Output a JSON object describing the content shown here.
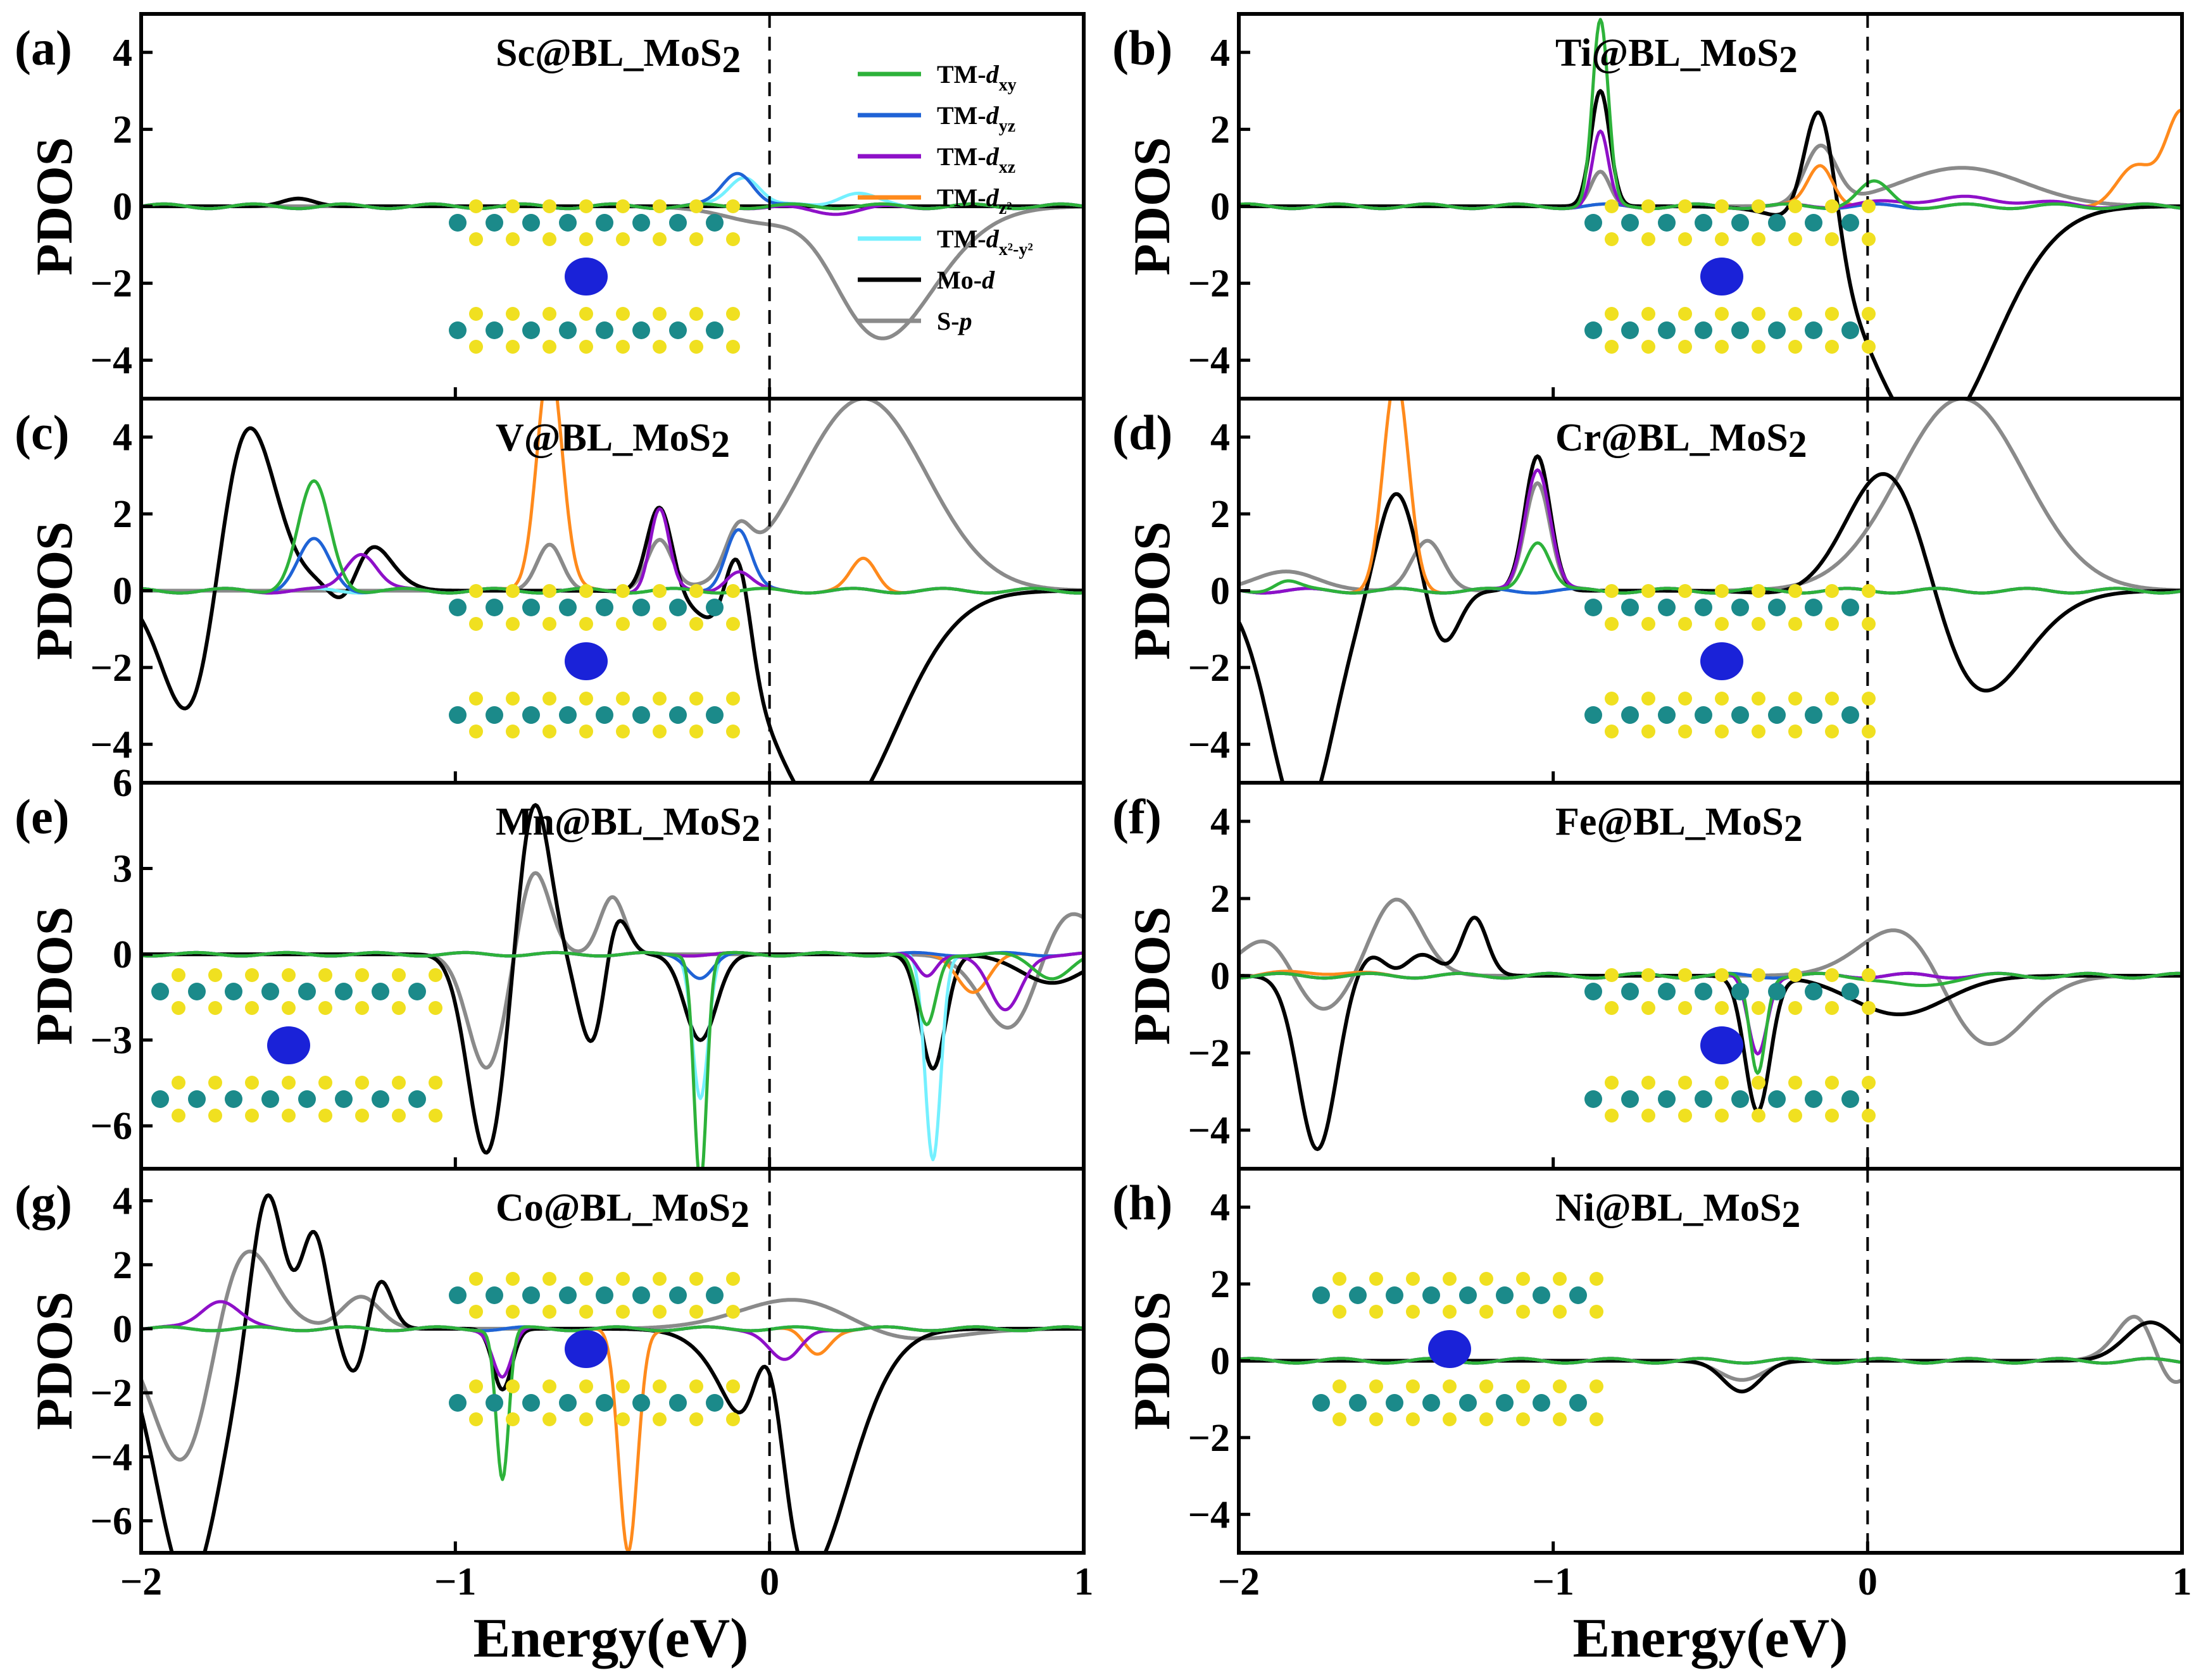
{
  "figure": {
    "xlabel": "Energy(eV)",
    "ylabel": "PDOS"
  },
  "legend": [
    {
      "key": "dxy",
      "prefix": "TM-",
      "italic": "d",
      "sub": "xy",
      "color": "#2db23a"
    },
    {
      "key": "dyz",
      "prefix": "TM-",
      "italic": "d",
      "sub": "yz",
      "color": "#1f63d6"
    },
    {
      "key": "dxz",
      "prefix": "TM-",
      "italic": "d",
      "sub": "xz",
      "color": "#8e10c8"
    },
    {
      "key": "dz2",
      "prefix": "TM-",
      "italic": "d",
      "sub": "z²",
      "color": "#ff8a1c"
    },
    {
      "key": "dx2y2",
      "prefix": "TM-",
      "italic": "d",
      "sub": "x²-y²",
      "color": "#74f0ff"
    },
    {
      "key": "mod",
      "prefix": "Mo-",
      "italic": "d",
      "sub": "",
      "color": "#000000"
    },
    {
      "key": "sp",
      "prefix": "S-",
      "italic": "p",
      "sub": "",
      "color": "#8a8a8a"
    }
  ],
  "chart_data": [
    {
      "type": "line",
      "panel": "(a)",
      "title": "Sc@BL_MoS",
      "title_sub": "2",
      "xlabel": "",
      "ylabel": "PDOS",
      "xlim": [
        -2,
        1
      ],
      "ylim": [
        -5,
        5
      ],
      "xticks": [
        -2,
        -1,
        0,
        1
      ],
      "yticks": [
        -4,
        -2,
        0,
        2,
        4
      ],
      "fermi": 0,
      "peaks": {
        "mod": [
          [
            -1.5,
            1.6,
            0.05
          ],
          [
            -1.5,
            -1.4,
            0.05
          ],
          [
            -2.0,
            6,
            0.12
          ],
          [
            -2.0,
            -6,
            0.12
          ],
          [
            0.3,
            7,
            0.25
          ],
          [
            0.3,
            -7,
            0.25
          ]
        ],
        "sp": [
          [
            -1.6,
            0.5,
            0.06
          ],
          [
            -1.6,
            -0.5,
            0.06
          ],
          [
            -1.9,
            3.5,
            0.1
          ],
          [
            -1.9,
            -3.5,
            0.1
          ],
          [
            0.15,
            1.8,
            0.12
          ],
          [
            0.3,
            -4,
            0.2
          ]
        ],
        "dx2y2": [
          [
            -0.08,
            0.8,
            0.05
          ],
          [
            0.27,
            0.35,
            0.06
          ]
        ],
        "dyz": [
          [
            -0.1,
            0.9,
            0.05
          ]
        ],
        "dxz": [
          [
            0.2,
            -0.15,
            0.1
          ]
        ]
      }
    },
    {
      "type": "line",
      "panel": "(b)",
      "title": "Ti@BL_MoS",
      "title_sub": "2",
      "xlabel": "",
      "ylabel": "PDOS",
      "xlim": [
        -2,
        1
      ],
      "ylim": [
        -5,
        5
      ],
      "xticks": [
        -2,
        -1,
        0,
        1
      ],
      "yticks": [
        -4,
        -2,
        0,
        2,
        4
      ],
      "fermi": 0,
      "peaks": {
        "mod": [
          [
            -0.85,
            3.0,
            0.03
          ],
          [
            -0.15,
            3.7,
            0.05
          ],
          [
            -1.55,
            1.6,
            0.05
          ],
          [
            -1.55,
            -1.6,
            0.05
          ],
          [
            -1.85,
            6,
            0.1
          ],
          [
            -1.85,
            -6,
            0.1
          ],
          [
            0.2,
            -6,
            0.2
          ]
        ],
        "sp": [
          [
            -0.85,
            0.9,
            0.03
          ],
          [
            -0.15,
            1.5,
            0.05
          ],
          [
            -1.9,
            4,
            0.1
          ],
          [
            -1.9,
            -4,
            0.1
          ],
          [
            0.3,
            4,
            0.2
          ],
          [
            0.3,
            -3,
            0.2
          ]
        ],
        "dxy": [
          [
            -0.85,
            4.8,
            0.025
          ],
          [
            0.02,
            0.6,
            0.05
          ]
        ],
        "dxz": [
          [
            -0.85,
            1.9,
            0.025
          ],
          [
            0.3,
            0.2,
            0.2
          ]
        ],
        "dz2": [
          [
            -0.15,
            1.1,
            0.04
          ],
          [
            0.85,
            1.0,
            0.06
          ],
          [
            1.0,
            2.5,
            0.05
          ]
        ]
      }
    },
    {
      "type": "line",
      "panel": "(c)",
      "title": "V@BL_MoS",
      "title_sub": "2",
      "xlabel": "",
      "ylabel": "PDOS",
      "xlim": [
        -2,
        1
      ],
      "ylim": [
        -5,
        5
      ],
      "xticks": [
        -2,
        -1,
        0,
        1
      ],
      "yticks": [
        -4,
        -2,
        0,
        2,
        4
      ],
      "fermi": 0,
      "peaks": {
        "mod": [
          [
            -0.35,
            2.3,
            0.04
          ],
          [
            -0.1,
            2.7,
            0.04
          ],
          [
            -1.3,
            1.6,
            0.08
          ],
          [
            -1.7,
            7,
            0.1
          ],
          [
            -1.35,
            -1.4,
            0.05
          ],
          [
            -1.8,
            -6,
            0.1
          ],
          [
            0.2,
            -6,
            0.2
          ]
        ],
        "sp": [
          [
            -0.7,
            1.2,
            0.04
          ],
          [
            -0.35,
            1.3,
            0.04
          ],
          [
            -0.1,
            1.1,
            0.04
          ],
          [
            -1.8,
            3.0,
            0.1
          ],
          [
            -1.8,
            -3,
            0.1
          ],
          [
            0.3,
            5,
            0.2
          ]
        ],
        "dz2": [
          [
            -0.7,
            6.0,
            0.04
          ],
          [
            0.3,
            0.8,
            0.04
          ]
        ],
        "dxy": [
          [
            -1.45,
            2.8,
            0.05
          ]
        ],
        "dyz": [
          [
            -1.45,
            1.3,
            0.05
          ],
          [
            -0.1,
            1.6,
            0.04
          ]
        ],
        "dxz": [
          [
            -0.35,
            2.1,
            0.03
          ],
          [
            -1.3,
            1.0,
            0.05
          ],
          [
            -0.1,
            0.5,
            0.04
          ]
        ]
      }
    },
    {
      "type": "line",
      "panel": "(d)",
      "title": "Cr@BL_MoS",
      "title_sub": "2",
      "xlabel": "",
      "ylabel": "PDOS",
      "xlim": [
        -2,
        1
      ],
      "ylim": [
        -5,
        5
      ],
      "xticks": [
        -2,
        -1,
        0,
        1
      ],
      "yticks": [
        -4,
        -2,
        0,
        2,
        4
      ],
      "fermi": 0,
      "peaks": {
        "mod": [
          [
            -1.5,
            2.6,
            0.06
          ],
          [
            -1.05,
            3.5,
            0.04
          ],
          [
            -1.35,
            -1.4,
            0.05
          ],
          [
            -1.8,
            -6,
            0.1
          ],
          [
            0.1,
            8,
            0.15
          ],
          [
            0.2,
            -6,
            0.2
          ]
        ],
        "sp": [
          [
            -1.4,
            1.3,
            0.05
          ],
          [
            -1.05,
            2.8,
            0.04
          ],
          [
            -1.85,
            4.0,
            0.1
          ],
          [
            -1.85,
            -3.5,
            0.1
          ],
          [
            0.3,
            5,
            0.2
          ]
        ],
        "dz2": [
          [
            -1.5,
            5.5,
            0.04
          ]
        ],
        "dxz": [
          [
            -1.05,
            3.2,
            0.04
          ]
        ],
        "dxy": [
          [
            -1.05,
            1.3,
            0.04
          ],
          [
            -1.85,
            0.25,
            0.04
          ]
        ]
      }
    },
    {
      "type": "line",
      "panel": "(e)",
      "title": "Mn@BL_MoS",
      "title_sub": "2",
      "xlabel": "",
      "ylabel": "PDOS",
      "xlim": [
        -2,
        1
      ],
      "ylim": [
        -7.5,
        6
      ],
      "xticks": [
        -2,
        -1,
        0,
        1
      ],
      "yticks": [
        -6,
        -3,
        0,
        3,
        6
      ],
      "fermi": 0,
      "peaks": {
        "mod": [
          [
            -0.75,
            5.5,
            0.05
          ],
          [
            -0.5,
            3.0,
            0.04
          ],
          [
            -0.22,
            -3.0,
            0.05
          ],
          [
            0.52,
            -4.0,
            0.04
          ],
          [
            -0.9,
            -7,
            0.06
          ],
          [
            -0.55,
            -4,
            0.05
          ],
          [
            0.9,
            -6,
            0.1
          ],
          [
            0.9,
            5,
            0.1
          ]
        ],
        "sp": [
          [
            -0.5,
            2.0,
            0.04
          ],
          [
            -0.75,
            3.0,
            0.05
          ],
          [
            -0.9,
            -4,
            0.06
          ],
          [
            0.8,
            -4,
            0.1
          ],
          [
            0.9,
            3,
            0.1
          ]
        ],
        "dxy": [
          [
            -0.22,
            -8.0,
            0.02
          ],
          [
            0.5,
            -2.5,
            0.03
          ],
          [
            0.9,
            -0.8,
            0.06
          ]
        ],
        "dx2y2": [
          [
            -0.22,
            -5.0,
            0.025
          ],
          [
            0.52,
            -7.2,
            0.025
          ]
        ],
        "dxz": [
          [
            0.5,
            -0.8,
            0.03
          ],
          [
            0.75,
            -2.0,
            0.05
          ]
        ],
        "dz2": [
          [
            0.65,
            -1.3,
            0.05
          ]
        ],
        "dyz": [
          [
            -0.22,
            -0.8,
            0.04
          ]
        ]
      }
    },
    {
      "type": "line",
      "panel": "(f)",
      "title": "Fe@BL_MoS",
      "title_sub": "2",
      "xlabel": "",
      "ylabel": "PDOS",
      "xlim": [
        -2,
        1
      ],
      "ylim": [
        -5,
        5
      ],
      "xticks": [
        -2,
        -1,
        0,
        1
      ],
      "yticks": [
        -4,
        -2,
        0,
        2,
        4
      ],
      "fermi": 0,
      "peaks": {
        "mod": [
          [
            -1.5,
            4.2,
            0.07
          ],
          [
            -1.25,
            1.5,
            0.04
          ],
          [
            -1.75,
            -4.5,
            0.06
          ],
          [
            -1.5,
            -4,
            0.06
          ],
          [
            -0.35,
            -3.5,
            0.04
          ],
          [
            0.1,
            -7,
            0.15
          ],
          [
            0.1,
            6,
            0.15
          ]
        ],
        "sp": [
          [
            -1.5,
            2.0,
            0.08
          ],
          [
            -1.85,
            3,
            0.1
          ],
          [
            -1.8,
            -3,
            0.1
          ],
          [
            0.2,
            3.5,
            0.15
          ],
          [
            0.3,
            -4,
            0.15
          ]
        ],
        "dxz": [
          [
            -0.35,
            -2.0,
            0.03
          ]
        ],
        "dxy": [
          [
            -0.35,
            -2.5,
            0.025
          ],
          [
            0.15,
            -0.3,
            0.08
          ]
        ],
        "dz2": [
          [
            -1.75,
            0.1,
            0.1
          ]
        ]
      }
    },
    {
      "type": "line",
      "panel": "(g)",
      "title": "Co@BL_MoS",
      "title_sub": "2",
      "xlabel": "",
      "ylabel": "PDOS",
      "xlim": [
        -2,
        1
      ],
      "ylim": [
        -7,
        5
      ],
      "xticks": [
        -2,
        -1,
        0,
        1
      ],
      "yticks": [
        -6,
        -4,
        -2,
        0,
        2,
        4
      ],
      "fermi": 0,
      "peaks": {
        "mod": [
          [
            -1.6,
            4.5,
            0.05
          ],
          [
            -1.45,
            3.0,
            0.04
          ],
          [
            -1.25,
            2.5,
            0.04
          ],
          [
            -1.3,
            -2.0,
            0.05
          ],
          [
            -0.85,
            -1.9,
            0.03
          ],
          [
            0.0,
            5,
            0.05
          ],
          [
            -1.85,
            -8,
            0.1
          ],
          [
            0.1,
            -8,
            0.15
          ]
        ],
        "sp": [
          [
            -1.7,
            3.5,
            0.1
          ],
          [
            -1.3,
            1.0,
            0.06
          ],
          [
            -1.85,
            -5,
            0.1
          ],
          [
            0.2,
            4,
            0.2
          ],
          [
            0.25,
            -3.5,
            0.2
          ]
        ],
        "dz2": [
          [
            -0.45,
            -7.0,
            0.03
          ],
          [
            0.15,
            -0.8,
            0.04
          ]
        ],
        "dxy": [
          [
            -0.85,
            -4.7,
            0.02
          ]
        ],
        "dxz": [
          [
            -1.75,
            0.9,
            0.06
          ],
          [
            -0.85,
            -1.5,
            0.03
          ],
          [
            0.05,
            -1.0,
            0.05
          ]
        ]
      }
    },
    {
      "type": "line",
      "panel": "(h)",
      "title": "Ni@BL_MoS",
      "title_sub": "2",
      "xlabel": "",
      "ylabel": "PDOS",
      "xlim": [
        -2,
        1
      ],
      "ylim": [
        -5,
        5
      ],
      "xticks": [
        -2,
        -1,
        0,
        1
      ],
      "yticks": [
        -4,
        -2,
        0,
        2,
        4
      ],
      "fermi": 0,
      "peaks": {
        "mod": [
          [
            -0.4,
            3.7,
            0.06
          ],
          [
            -0.4,
            -4.5,
            0.06
          ],
          [
            -1.9,
            5,
            0.15
          ],
          [
            -1.9,
            -5,
            0.15
          ],
          [
            0.9,
            7,
            0.08
          ],
          [
            0.9,
            -6,
            0.08
          ]
        ],
        "sp": [
          [
            -0.4,
            2.5,
            0.07
          ],
          [
            -0.4,
            -3.0,
            0.07
          ],
          [
            -1.2,
            4,
            0.15
          ],
          [
            -1.2,
            -4,
            0.15
          ],
          [
            0.9,
            2,
            0.08
          ],
          [
            0.95,
            -2,
            0.06
          ]
        ],
        "dz2": [
          [
            -0.4,
            1.8,
            0.04
          ],
          [
            -0.4,
            -1.8,
            0.04
          ],
          [
            -1.2,
            0.5,
            0.15
          ],
          [
            -1.2,
            -0.5,
            0.15
          ]
        ],
        "dxz": [
          [
            -0.38,
            1.6,
            0.04
          ],
          [
            -0.38,
            -1.6,
            0.04
          ],
          [
            -1.5,
            0.4,
            0.2
          ],
          [
            -1.5,
            -0.4,
            0.2
          ]
        ],
        "dxy": [
          [
            -0.45,
            1.0,
            0.05
          ],
          [
            -0.45,
            -1.0,
            0.05
          ],
          [
            -1.1,
            1.0,
            0.15
          ],
          [
            -1.1,
            -1.0,
            0.15
          ]
        ]
      }
    }
  ]
}
